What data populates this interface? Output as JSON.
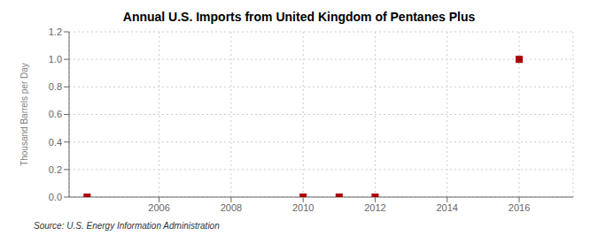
{
  "chart_data": {
    "type": "scatter",
    "title": "Annual U.S. Imports from United Kingdom of Pentanes Plus",
    "ylabel": "Thousand Barrels per Day",
    "source": "Source: U.S. Energy Information Administration",
    "x": [
      2004,
      2010,
      2011,
      2012,
      2016
    ],
    "values": [
      0.0,
      0.0,
      0.0,
      0.0,
      1.0
    ],
    "color": "#aa0000",
    "marker": "square",
    "xlim": [
      2003.5,
      2017.5
    ],
    "xticks": [
      2006,
      2008,
      2010,
      2012,
      2014,
      2016
    ],
    "ylim": [
      0.0,
      1.2
    ],
    "yticks": [
      {
        "value": 0.0,
        "label": "0.0"
      },
      0.2,
      0.4,
      0.6,
      0.8,
      {
        "value": 1.0,
        "label": "1.0"
      },
      1.2
    ],
    "grid": true
  }
}
